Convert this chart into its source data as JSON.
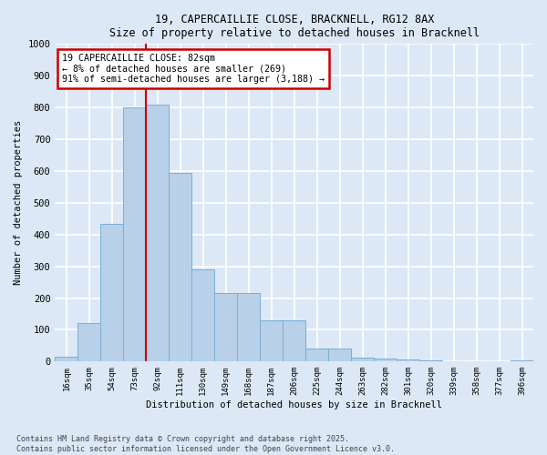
{
  "title_line1": "19, CAPERCAILLIE CLOSE, BRACKNELL, RG12 8AX",
  "title_line2": "Size of property relative to detached houses in Bracknell",
  "xlabel": "Distribution of detached houses by size in Bracknell",
  "ylabel": "Number of detached properties",
  "bar_color": "#b8d0e8",
  "bar_edge_color": "#7aaed6",
  "categories": [
    "16sqm",
    "35sqm",
    "54sqm",
    "73sqm",
    "92sqm",
    "111sqm",
    "130sqm",
    "149sqm",
    "168sqm",
    "187sqm",
    "206sqm",
    "225sqm",
    "244sqm",
    "263sqm",
    "282sqm",
    "301sqm",
    "320sqm",
    "339sqm",
    "358sqm",
    "377sqm",
    "396sqm"
  ],
  "values": [
    15,
    120,
    435,
    800,
    810,
    595,
    290,
    215,
    215,
    130,
    130,
    42,
    40,
    13,
    10,
    6,
    4,
    2,
    1,
    1,
    5
  ],
  "ylim": [
    0,
    1000
  ],
  "yticks": [
    0,
    100,
    200,
    300,
    400,
    500,
    600,
    700,
    800,
    900,
    1000
  ],
  "property_line_x": 3.5,
  "annotation_title": "19 CAPERCAILLIE CLOSE: 82sqm",
  "annotation_line2": "← 8% of detached houses are smaller (269)",
  "annotation_line3": "91% of semi-detached houses are larger (3,188) →",
  "annotation_box_color": "#ffffff",
  "annotation_border_color": "#cc0000",
  "property_line_color": "#cc0000",
  "background_color": "#dce8f5",
  "grid_color": "#ffffff",
  "footer_line1": "Contains HM Land Registry data © Crown copyright and database right 2025.",
  "footer_line2": "Contains public sector information licensed under the Open Government Licence v3.0."
}
